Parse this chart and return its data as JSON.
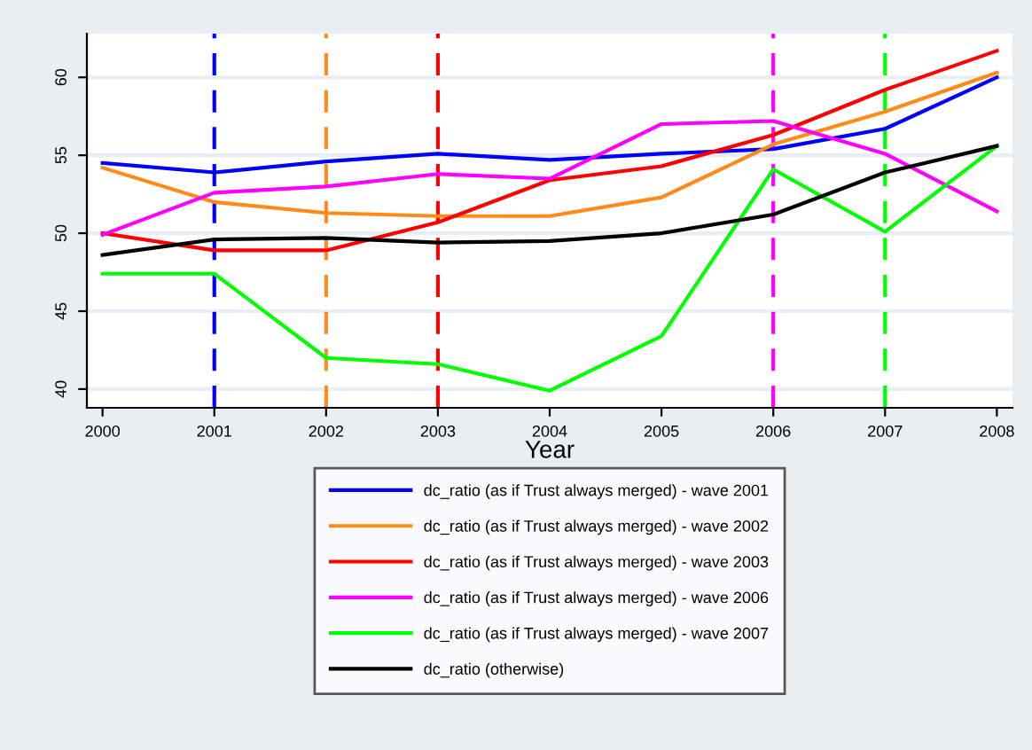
{
  "chart_data": {
    "type": "line",
    "xlabel": "Year",
    "x": [
      2000,
      2001,
      2002,
      2003,
      2004,
      2005,
      2006,
      2007,
      2008
    ],
    "series": [
      {
        "name": "dc_ratio (as if Trust always merged) - wave 2001",
        "color": "#0000ff",
        "values": [
          54.5,
          53.9,
          54.6,
          55.1,
          54.7,
          55.1,
          55.4,
          56.7,
          60.0
        ]
      },
      {
        "name": "dc_ratio (as if Trust always merged) - wave 2002",
        "color": "#ff8c1a",
        "values": [
          54.2,
          52.0,
          51.3,
          51.1,
          51.1,
          52.3,
          55.7,
          57.8,
          60.3
        ]
      },
      {
        "name": "dc_ratio (as if Trust always merged) - wave 2003",
        "color": "#ff0000",
        "values": [
          50.0,
          48.9,
          48.9,
          50.7,
          53.4,
          54.3,
          56.3,
          59.2,
          61.7
        ]
      },
      {
        "name": "dc_ratio (as if Trust always merged) - wave 2006",
        "color": "#ff00ff",
        "values": [
          49.9,
          52.6,
          53.0,
          53.8,
          53.5,
          57.0,
          57.2,
          55.1,
          51.4
        ]
      },
      {
        "name": "dc_ratio (as if Trust always merged) - wave 2007",
        "color": "#00ff00",
        "values": [
          47.4,
          47.4,
          42.0,
          41.6,
          39.9,
          43.4,
          54.1,
          50.1,
          55.6
        ]
      },
      {
        "name": "dc_ratio (otherwise)",
        "color": "#000000",
        "values": [
          48.6,
          49.6,
          49.7,
          49.4,
          49.5,
          50.0,
          51.2,
          53.9,
          55.6
        ]
      }
    ],
    "ref_lines": [
      {
        "axis": "x",
        "value": 2001,
        "color": "#0000ff",
        "line_style": "dashed"
      },
      {
        "axis": "x",
        "value": 2002,
        "color": "#ff8c1a",
        "line_style": "dashed"
      },
      {
        "axis": "x",
        "value": 2003,
        "color": "#ff0000",
        "line_style": "dashed"
      },
      {
        "axis": "x",
        "value": 2006,
        "color": "#ff00ff",
        "line_style": "dashed"
      },
      {
        "axis": "x",
        "value": 2007,
        "color": "#00ff00",
        "line_style": "dashed"
      }
    ],
    "xlim": [
      1999.86,
      2008.14
    ],
    "xticks": [
      2000,
      2001,
      2002,
      2003,
      2004,
      2005,
      2006,
      2007,
      2008
    ],
    "ylim": [
      38.8,
      62.8
    ],
    "yticks": [
      40,
      45,
      50,
      55,
      60
    ],
    "grid": "y",
    "legend": "bottom",
    "marker": "none",
    "line_style": "solid"
  }
}
